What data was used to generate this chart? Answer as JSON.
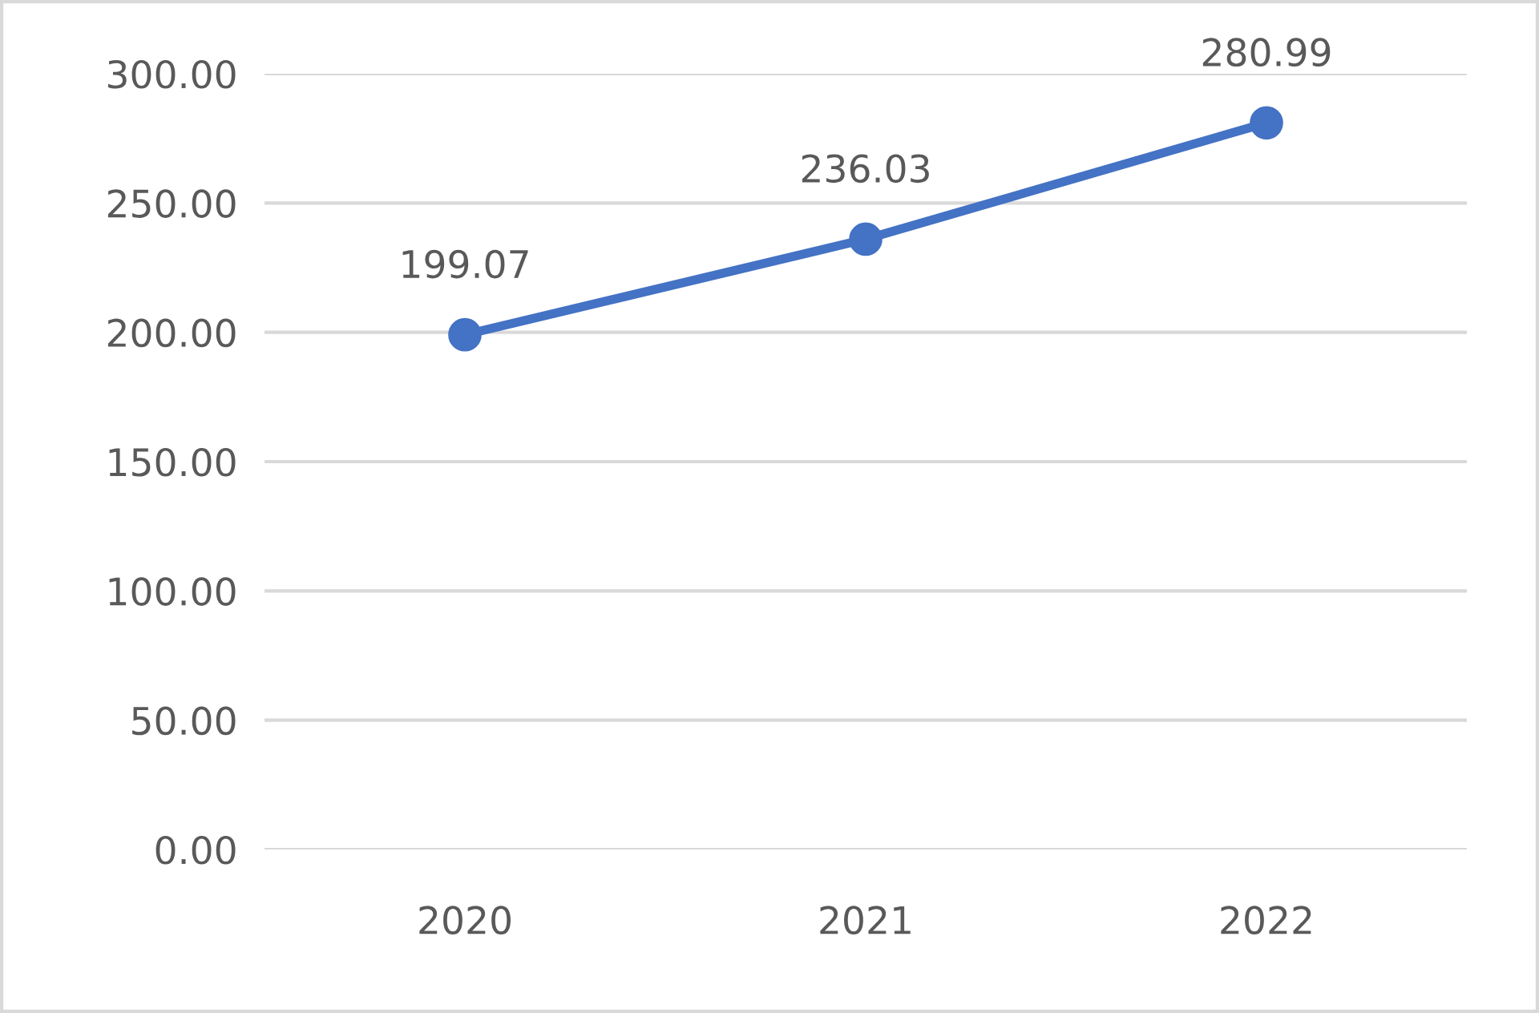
{
  "chart_data": {
    "type": "line",
    "categories": [
      "2020",
      "2021",
      "2022"
    ],
    "series": [
      {
        "color": "#4472c4",
        "values": [
          199.07,
          236.03,
          280.99
        ]
      }
    ],
    "ylim": [
      0,
      300
    ],
    "yticks": [
      {
        "value": 0,
        "label": "0.00"
      },
      {
        "value": 50,
        "label": "50.00"
      },
      {
        "value": 100,
        "label": "100.00"
      },
      {
        "value": 150,
        "label": "150.00"
      },
      {
        "value": 200,
        "label": "200.00"
      },
      {
        "value": 250,
        "label": "250.00"
      },
      {
        "value": 300,
        "label": "300.00"
      }
    ],
    "grid": "y",
    "marker": "circle",
    "line_style": "solid",
    "data_labels": true,
    "legend": false
  }
}
